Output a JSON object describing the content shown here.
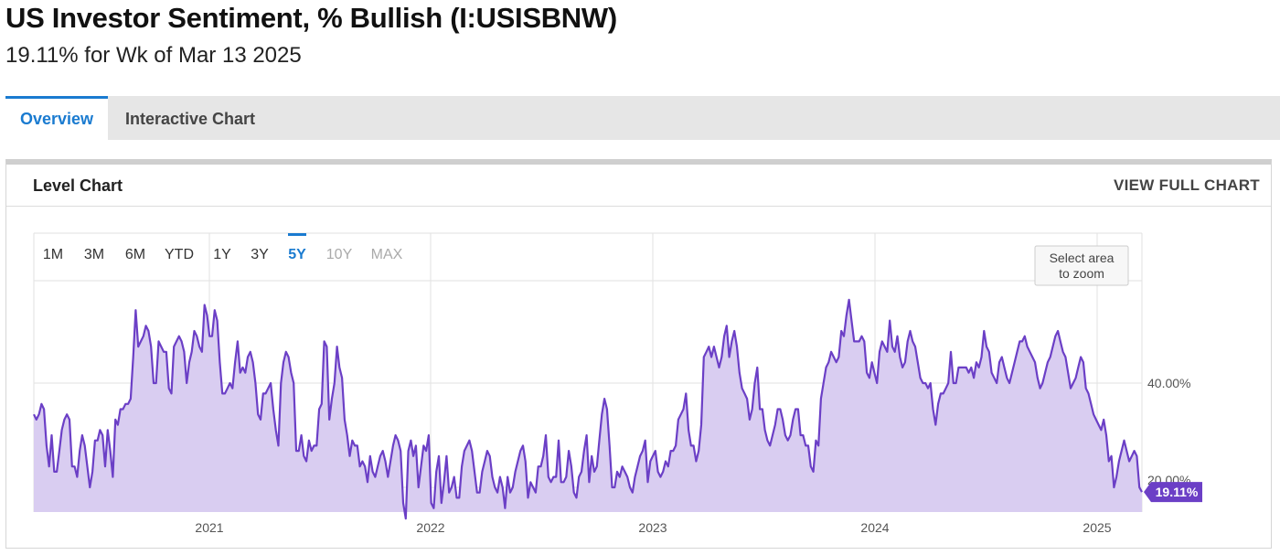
{
  "header": {
    "title": "US Investor Sentiment, % Bullish (I:USISBNW)",
    "subtitle": "19.11% for Wk of Mar 13 2025"
  },
  "tabs": [
    {
      "label": "Overview",
      "active": true
    },
    {
      "label": "Interactive Chart",
      "active": false
    }
  ],
  "card": {
    "title": "Level Chart",
    "link": "VIEW FULL CHART"
  },
  "range_buttons": [
    {
      "label": "1M",
      "state": "normal"
    },
    {
      "label": "3M",
      "state": "normal"
    },
    {
      "label": "6M",
      "state": "normal"
    },
    {
      "label": "YTD",
      "state": "normal"
    },
    {
      "label": "1Y",
      "state": "normal"
    },
    {
      "label": "3Y",
      "state": "normal"
    },
    {
      "label": "5Y",
      "state": "selected"
    },
    {
      "label": "10Y",
      "state": "disabled"
    },
    {
      "label": "MAX",
      "state": "disabled"
    }
  ],
  "zoom_hint": [
    "Select area",
    "to zoom"
  ],
  "colors": {
    "line": "#6b3fc6",
    "fill": "#d9cdf1",
    "accent": "#1a7bd0",
    "badge": "#6b3fc6"
  },
  "chart_data": {
    "type": "area",
    "series": [
      {
        "values": [
          34,
          33,
          34,
          36,
          35,
          28,
          24,
          30,
          23,
          23,
          27,
          31,
          33,
          34,
          33,
          24,
          24,
          22,
          27,
          30,
          28,
          24,
          20,
          23,
          29,
          29,
          31,
          30,
          24,
          31,
          27,
          22,
          33,
          32,
          35,
          35,
          36,
          36,
          37,
          45,
          54,
          47,
          48,
          49,
          51,
          50,
          47,
          40,
          40,
          48,
          47,
          46,
          46,
          39,
          38,
          47,
          48,
          49,
          48,
          46,
          40,
          44,
          46,
          50,
          49,
          47,
          46,
          55,
          53,
          49,
          49,
          54,
          52,
          44,
          38,
          38,
          39,
          40,
          39,
          44,
          48,
          42,
          43,
          42,
          45,
          46,
          44,
          40,
          34,
          33,
          38,
          38,
          39,
          40,
          35,
          31,
          28,
          40,
          44,
          46,
          45,
          42,
          40,
          27,
          27,
          30,
          26,
          25,
          29,
          27,
          28,
          28,
          35,
          36,
          48,
          47,
          33,
          37,
          40,
          47,
          43,
          41,
          33,
          30,
          26,
          29,
          28,
          28,
          24,
          25,
          24,
          21,
          26,
          23,
          22,
          24,
          26,
          27,
          25,
          22,
          25,
          28,
          30,
          29,
          27,
          17,
          14,
          27,
          29,
          26,
          28,
          20,
          24,
          28,
          27,
          30,
          17,
          16,
          23,
          26,
          17,
          21,
          26,
          19,
          20,
          22,
          18,
          18,
          24,
          27,
          28,
          29,
          27,
          23,
          19,
          19,
          23,
          25,
          27,
          26,
          22,
          20,
          19,
          22,
          20,
          16,
          22,
          19,
          20,
          23,
          25,
          27,
          28,
          25,
          18,
          21,
          20,
          19,
          24,
          24,
          26,
          30,
          22,
          21,
          22,
          22,
          29,
          21,
          21,
          22,
          27,
          24,
          19,
          18,
          22,
          23,
          27,
          30,
          21,
          26,
          23,
          24,
          29,
          34,
          37,
          35,
          28,
          20,
          20,
          23,
          22,
          24,
          23,
          22,
          20,
          19,
          22,
          24,
          26,
          27,
          29,
          21,
          25,
          26,
          27,
          23,
          22,
          23,
          25,
          24,
          27,
          27,
          28,
          33,
          34,
          35,
          38,
          31,
          28,
          28,
          25,
          27,
          32,
          45,
          46,
          47,
          45,
          47,
          45,
          43,
          45,
          49,
          51,
          45,
          48,
          50,
          47,
          42,
          39,
          38,
          37,
          33,
          35,
          40,
          43,
          35,
          35,
          31,
          29,
          28,
          30,
          32,
          35,
          35,
          33,
          30,
          29,
          30,
          33,
          35,
          35,
          30,
          30,
          28,
          28,
          24,
          23,
          29,
          28,
          37,
          40,
          43,
          44,
          46,
          45,
          44,
          45,
          50,
          49,
          53,
          56,
          52,
          48,
          48,
          48,
          49,
          48,
          42,
          41,
          44,
          42,
          40,
          46,
          48,
          47,
          46,
          52,
          47,
          46,
          49,
          45,
          43,
          44,
          48,
          50,
          48,
          47,
          44,
          41,
          40,
          40,
          39,
          40,
          35,
          32,
          36,
          38,
          38,
          39,
          40,
          46,
          40,
          40,
          43,
          43,
          43,
          43,
          42,
          43,
          41,
          44,
          43,
          45,
          50,
          47,
          46,
          42,
          41,
          40,
          44,
          45,
          43,
          41,
          40,
          42,
          44,
          46,
          48,
          48,
          49,
          47,
          46,
          45,
          44,
          41,
          39,
          40,
          42,
          44,
          45,
          47,
          49,
          50,
          48,
          46,
          45,
          42,
          39,
          40,
          41,
          43,
          45,
          44,
          39,
          38,
          36,
          34,
          33,
          32,
          31,
          33,
          30,
          25,
          26,
          20,
          22,
          25,
          27,
          29,
          27,
          25,
          26,
          27,
          26,
          20,
          19.11
        ]
      }
    ],
    "x_ticks": [
      "2021",
      "2022",
      "2023",
      "2024",
      "2025"
    ],
    "y_ticks": [
      "20.00%",
      "40.00%"
    ],
    "ylim": [
      15,
      60
    ],
    "last_value_label": "19.11%",
    "grid": true
  }
}
